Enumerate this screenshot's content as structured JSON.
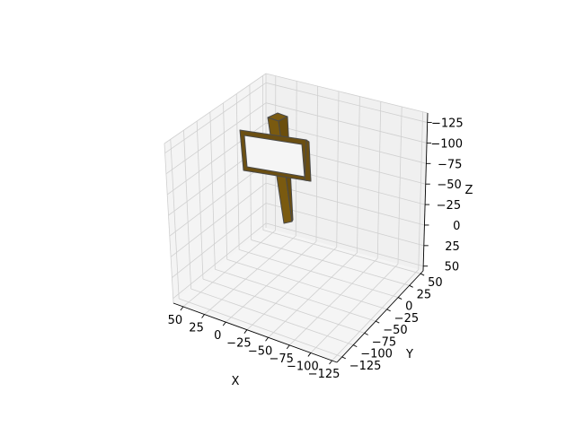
{
  "chart_data": {
    "type": "3d-surface",
    "title": "",
    "xlabel": "X",
    "ylabel": "Y",
    "zlabel": "Z",
    "x_ticks": [
      "50",
      "25",
      "0",
      "−25",
      "−50",
      "−75",
      "−100",
      "−125"
    ],
    "y_ticks": [
      "50",
      "25",
      "0",
      "−25",
      "−50",
      "−75",
      "−100",
      "−125"
    ],
    "z_ticks": [
      "−125",
      "−100",
      "−75",
      "−50",
      "−25",
      "0",
      "25",
      "50"
    ],
    "xlim": [
      -140,
      55
    ],
    "ylim": [
      -140,
      55
    ],
    "zlim": [
      -140,
      55
    ],
    "grid": true,
    "object": "signpost",
    "colors": {
      "post": "#7a5a10",
      "post_dark": "#6b4e0d",
      "frame": "#6b4f12",
      "board": "#f5f5f5",
      "edge": "#4a4a4a",
      "pane": "#ebebeb",
      "gridline": "#d0d0d0"
    }
  }
}
